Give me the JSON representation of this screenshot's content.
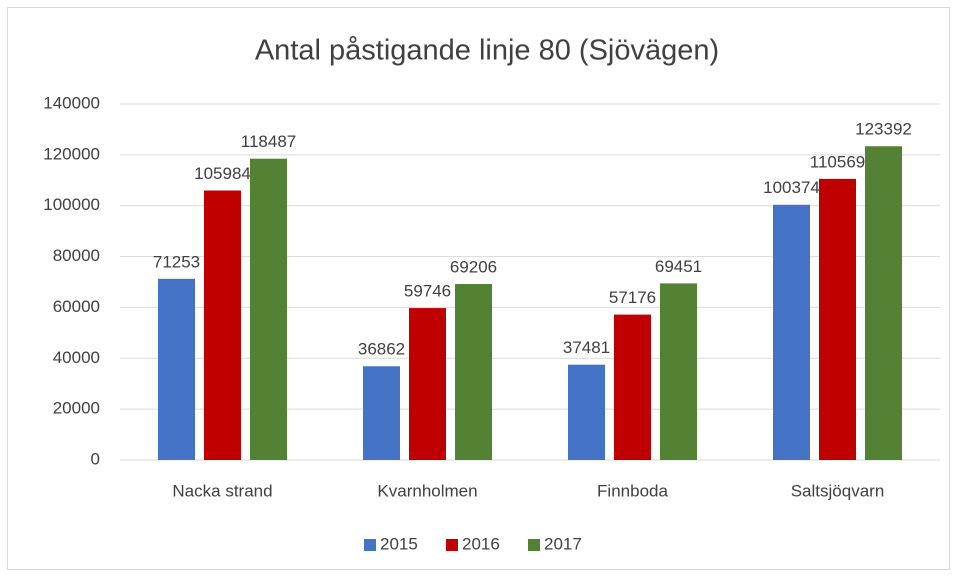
{
  "chart_data": {
    "type": "bar",
    "title": "Antal påstigande linje 80 (Sjövägen)",
    "categories": [
      "Nacka strand",
      "Kvarnholmen",
      "Finnboda",
      "Saltsjöqvarn"
    ],
    "series": [
      {
        "name": "2015",
        "color": "#4472c4",
        "values": [
          71253,
          36862,
          37481,
          100374
        ]
      },
      {
        "name": "2016",
        "color": "#c00000",
        "values": [
          105984,
          59746,
          57176,
          110569
        ]
      },
      {
        "name": "2017",
        "color": "#548235",
        "values": [
          118487,
          69206,
          69451,
          123392
        ]
      }
    ],
    "ylim": [
      0,
      140000
    ],
    "yticks": [
      0,
      20000,
      40000,
      60000,
      80000,
      100000,
      120000,
      140000
    ],
    "grid": true,
    "legend": "bottom"
  }
}
